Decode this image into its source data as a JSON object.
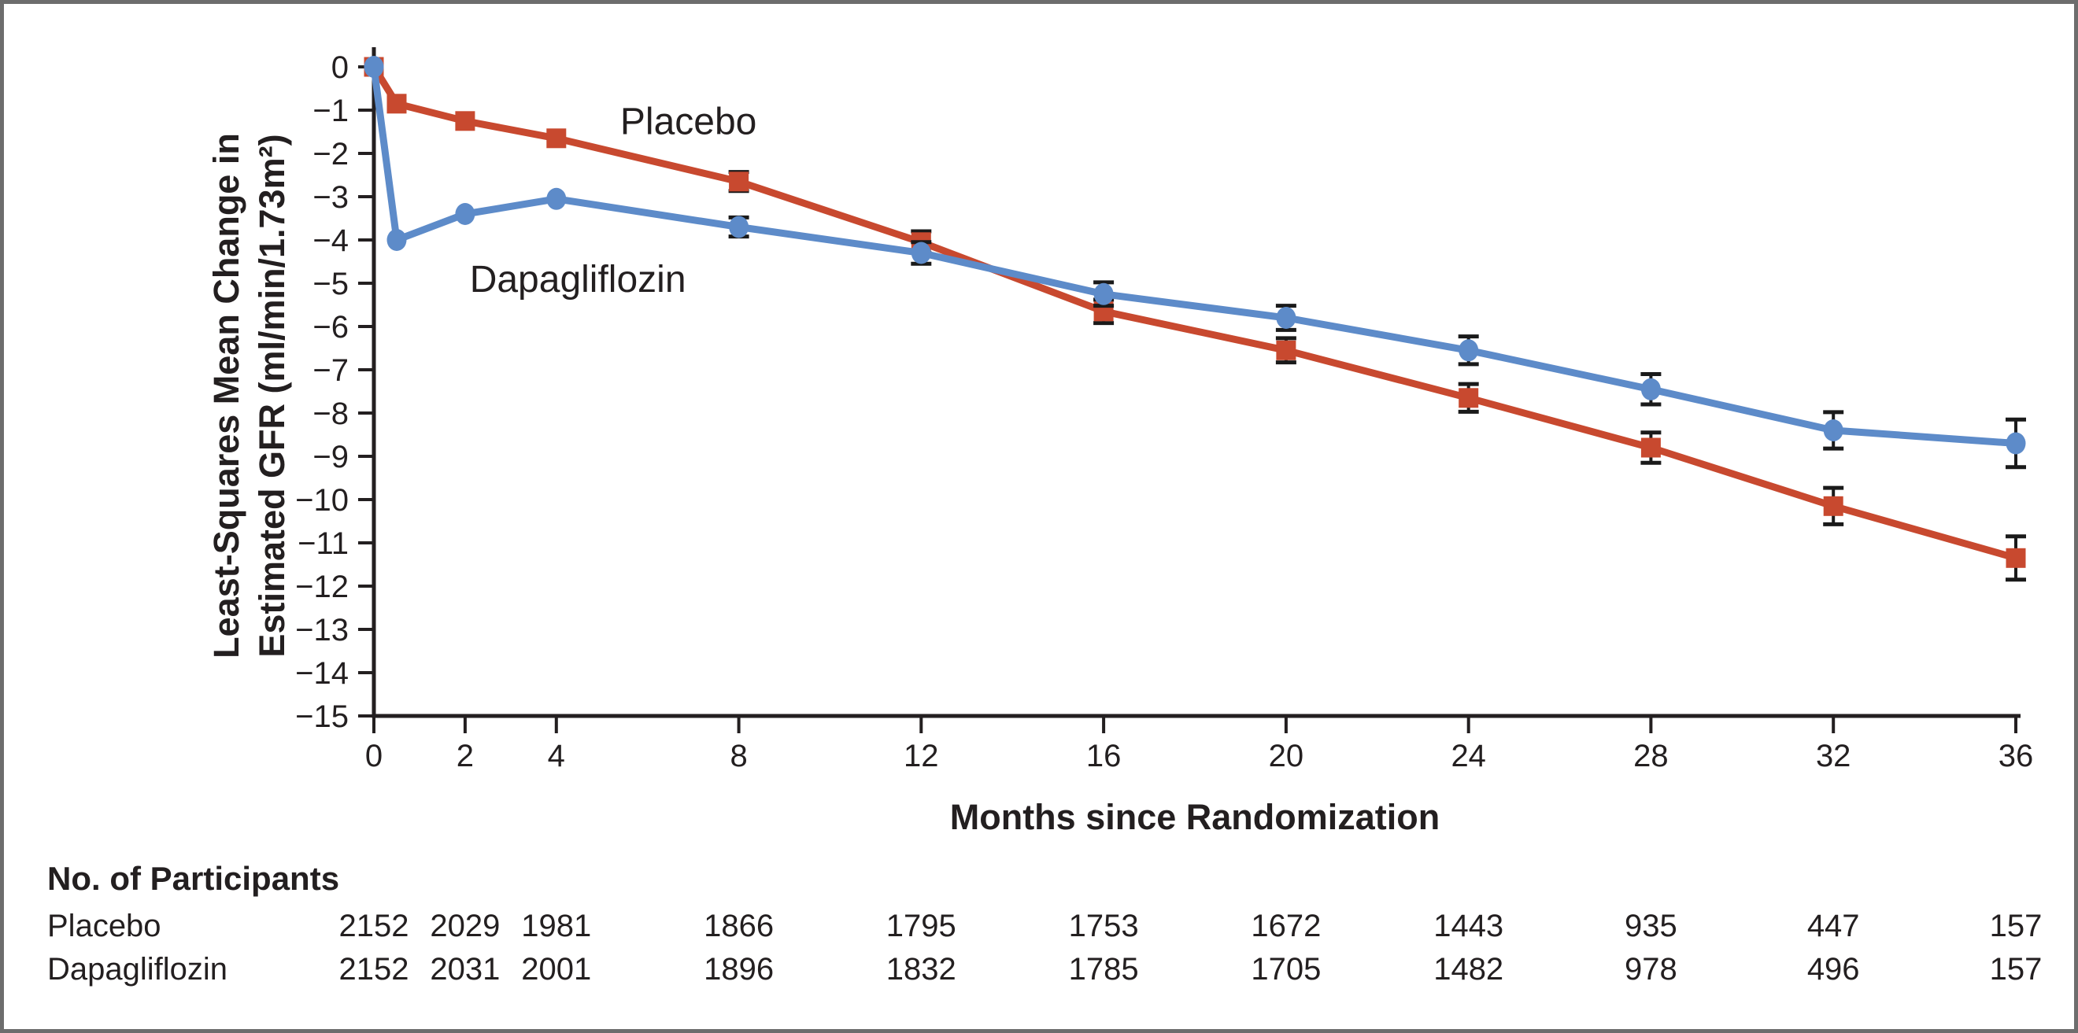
{
  "frame": {
    "border_color": "#6d6d6d",
    "background_color": "#ffffff",
    "text_color": "#231f20"
  },
  "chart_data": {
    "type": "line",
    "title": "",
    "xlabel": "Months since Randomization",
    "ylabel_lines": [
      "Least-Squares Mean Change in",
      "Estimated GFR (ml/min/1.73m²)"
    ],
    "xlim": [
      0,
      36
    ],
    "ylim": [
      -15,
      0
    ],
    "grid": false,
    "legend_position": "inline-annotations",
    "axis_color": "#231f20",
    "error_bar_color": "#1a1a1a",
    "x_ticks": {
      "values": [
        0,
        2,
        4,
        8,
        12,
        16,
        20,
        24,
        28,
        32,
        36
      ],
      "labels": [
        "0",
        "2",
        "4",
        "8",
        "12",
        "16",
        "20",
        "24",
        "28",
        "32",
        "36"
      ]
    },
    "y_ticks": {
      "values": [
        0,
        -1,
        -2,
        -3,
        -4,
        -5,
        -6,
        -7,
        -8,
        -9,
        -10,
        -11,
        -12,
        -13,
        -14,
        -15
      ],
      "labels": [
        "0",
        "−1",
        "−2",
        "−3",
        "−4",
        "−5",
        "−6",
        "−7",
        "−8",
        "−9",
        "−10",
        "−11",
        "−12",
        "−13",
        "−14",
        "−15"
      ]
    },
    "series": [
      {
        "name": "Placebo",
        "color": "#c8492f",
        "marker": "square",
        "x": [
          0,
          0.5,
          2,
          4,
          8,
          12,
          16,
          20,
          24,
          28,
          32,
          36
        ],
        "y": [
          0,
          -0.85,
          -1.25,
          -1.65,
          -2.65,
          -4.05,
          -5.65,
          -6.55,
          -7.65,
          -8.8,
          -10.15,
          -11.35
        ],
        "err": [
          0,
          0,
          0,
          0,
          0.22,
          0.25,
          0.27,
          0.28,
          0.32,
          0.35,
          0.42,
          0.5
        ],
        "label": {
          "text": "Placebo",
          "x_month": 5.4,
          "y_value": -1.55
        }
      },
      {
        "name": "Dapagliflozin",
        "color": "#5d8bc9",
        "marker": "circle",
        "x": [
          0,
          0.5,
          2,
          4,
          8,
          12,
          16,
          20,
          24,
          28,
          32,
          36
        ],
        "y": [
          0,
          -4.0,
          -3.4,
          -3.05,
          -3.7,
          -4.3,
          -5.25,
          -5.8,
          -6.55,
          -7.45,
          -8.4,
          -8.7
        ],
        "err": [
          0,
          0,
          0,
          0,
          0.22,
          0.25,
          0.27,
          0.28,
          0.32,
          0.35,
          0.42,
          0.55
        ],
        "label": {
          "text": "Dapagliflozin",
          "x_month": 2.1,
          "y_value": -5.2
        }
      }
    ]
  },
  "participants": {
    "header": "No. of Participants",
    "months": [
      0,
      2,
      4,
      8,
      12,
      16,
      20,
      24,
      28,
      32,
      36
    ],
    "rows": [
      {
        "label": "Placebo",
        "values": [
          "2152",
          "2029",
          "1981",
          "1866",
          "1795",
          "1753",
          "1672",
          "1443",
          "935",
          "447",
          "157"
        ]
      },
      {
        "label": "Dapagliflozin",
        "values": [
          "2152",
          "2031",
          "2001",
          "1896",
          "1832",
          "1785",
          "1705",
          "1482",
          "978",
          "496",
          "157"
        ]
      }
    ]
  }
}
